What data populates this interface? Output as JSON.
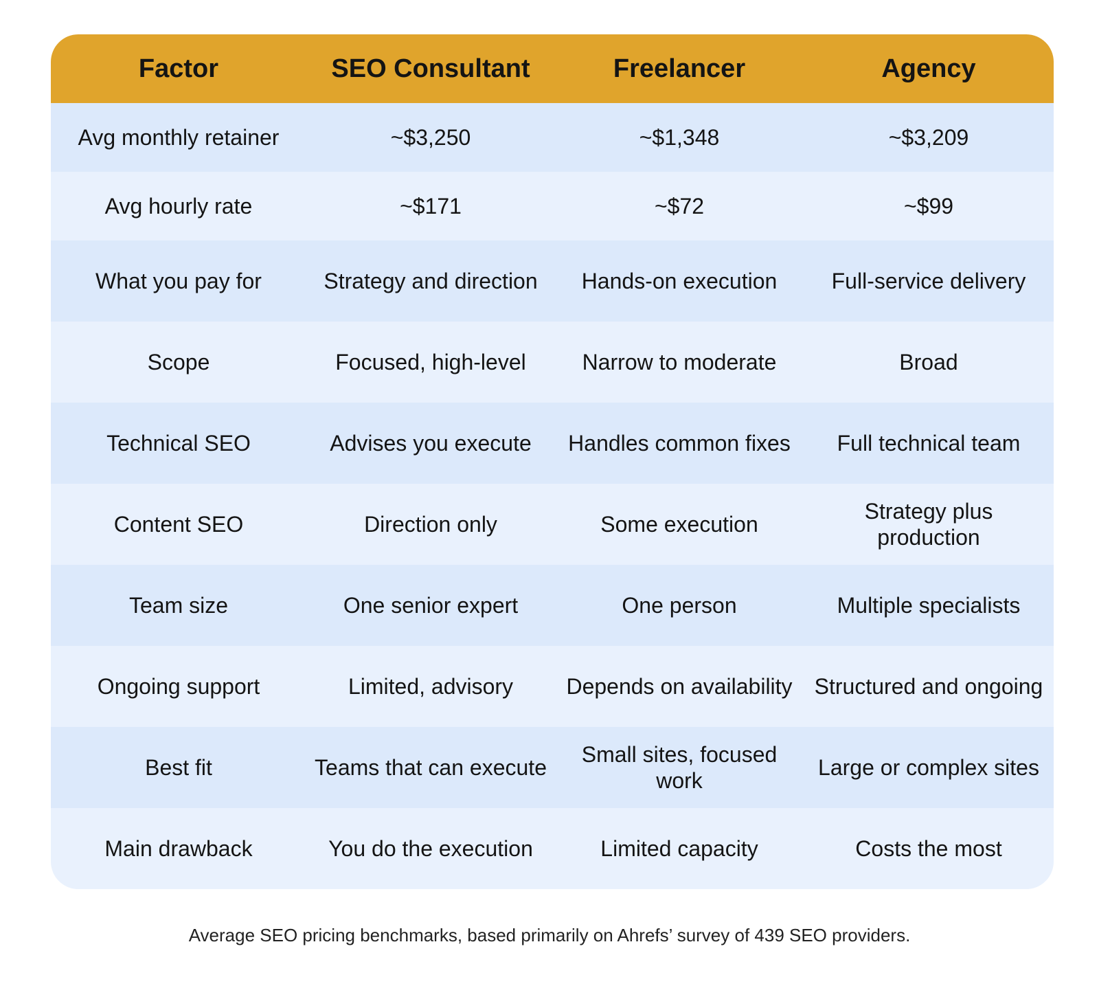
{
  "chart_data": {
    "type": "table",
    "columns": [
      "Factor",
      "SEO Consultant",
      "Freelancer",
      "Agency"
    ],
    "rows": [
      [
        "Avg monthly retainer",
        "~$3,250",
        "~$1,348",
        "~$3,209"
      ],
      [
        "Avg hourly rate",
        "~$171",
        "~$72",
        "~$99"
      ],
      [
        "What you pay for",
        "Strategy and direction",
        "Hands-on execution",
        "Full-service delivery"
      ],
      [
        "Scope",
        "Focused, high-level",
        "Narrow to moderate",
        "Broad"
      ],
      [
        "Technical SEO",
        "Advises you execute",
        "Handles common fixes",
        "Full technical team"
      ],
      [
        "Content SEO",
        "Direction only",
        "Some execution",
        "Strategy plus production"
      ],
      [
        "Team size",
        "One senior expert",
        "One person",
        "Multiple specialists"
      ],
      [
        "Ongoing support",
        "Limited, advisory",
        "Depends on availability",
        "Structured and ongoing"
      ],
      [
        "Best fit",
        "Teams that can execute",
        "Small sites, focused work",
        "Large or complex sites"
      ],
      [
        "Main drawback",
        "You do the execution",
        "Limited capacity",
        "Costs the most"
      ]
    ],
    "footnote": "Average SEO pricing benchmarks, based primarily on Ahrefs’ survey of 439 SEO providers."
  },
  "colors": {
    "header_bg": "#e0a42c",
    "row_even_bg": "#dce9fb",
    "row_odd_bg": "#e9f1fd"
  }
}
